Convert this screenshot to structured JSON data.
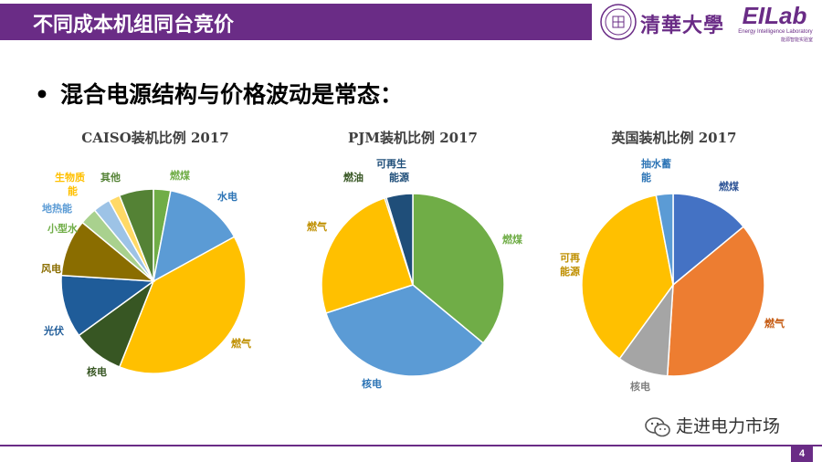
{
  "header": {
    "title": "不同成本机组同台竞价",
    "university": "清華大學",
    "lab_logo": "EILab",
    "lab_subtitle": "Energy Intelligence Laboratory",
    "lab_subtitle_cn": "能源智能实验室",
    "accent_color": "#6a2c86"
  },
  "bullet": {
    "text": "混合电源结构与价格波动是常态："
  },
  "footer": {
    "wechat_label": "走进电力市场",
    "page_number": "4"
  },
  "chart_data": [
    {
      "type": "pie",
      "title": "CAISO装机比例 2017",
      "slices": [
        {
          "name": "燃煤",
          "value": 3,
          "color": "#70ad47",
          "label_color": "#70ad47"
        },
        {
          "name": "水电",
          "value": 14,
          "color": "#5b9bd5",
          "label_color": "#2e75b6"
        },
        {
          "name": "燃气",
          "value": 39,
          "color": "#ffc000",
          "label_color": "#bf8f00"
        },
        {
          "name": "核电",
          "value": 9,
          "color": "#375623",
          "label_color": "#375623"
        },
        {
          "name": "光伏",
          "value": 11,
          "color": "#1f5c99",
          "label_color": "#1f5c99"
        },
        {
          "name": "风电",
          "value": 10,
          "color": "#8a6d00",
          "label_color": "#8a6d00"
        },
        {
          "name": "小型水",
          "value": 3,
          "color": "#a9d18e",
          "label_color": "#70ad47"
        },
        {
          "name": "地热能",
          "value": 3,
          "color": "#9dc3e6",
          "label_color": "#5b9bd5"
        },
        {
          "name": "生物质能",
          "value": 2,
          "color": "#ffd966",
          "label_color": "#ffc000"
        },
        {
          "name": "其他",
          "value": 6,
          "color": "#548235",
          "label_color": "#548235"
        }
      ]
    },
    {
      "type": "pie",
      "title": "PJM装机比例 2017",
      "slices": [
        {
          "name": "燃煤",
          "value": 36,
          "color": "#70ad47",
          "label_color": "#70ad47"
        },
        {
          "name": "核电",
          "value": 34,
          "color": "#5b9bd5",
          "label_color": "#2e75b6"
        },
        {
          "name": "燃气",
          "value": 25,
          "color": "#ffc000",
          "label_color": "#bf8f00"
        },
        {
          "name": "燃油",
          "value": 0.3,
          "color": "#375623",
          "label_color": "#375623"
        },
        {
          "name": "可再生能源",
          "value": 4.7,
          "color": "#1f4e79",
          "label_color": "#1f4e79"
        }
      ]
    },
    {
      "type": "pie",
      "title": "英国装机比例 2017",
      "slices": [
        {
          "name": "燃煤",
          "value": 14,
          "color": "#4472c4",
          "label_color": "#2f5597"
        },
        {
          "name": "燃气",
          "value": 37,
          "color": "#ed7d31",
          "label_color": "#c55a11"
        },
        {
          "name": "核电",
          "value": 9,
          "color": "#a5a5a5",
          "label_color": "#7f7f7f"
        },
        {
          "name": "可再生能源",
          "value": 37,
          "color": "#ffc000",
          "label_color": "#bf8f00"
        },
        {
          "name": "抽水蓄能",
          "value": 3,
          "color": "#5b9bd5",
          "label_color": "#2e75b6"
        }
      ]
    }
  ]
}
